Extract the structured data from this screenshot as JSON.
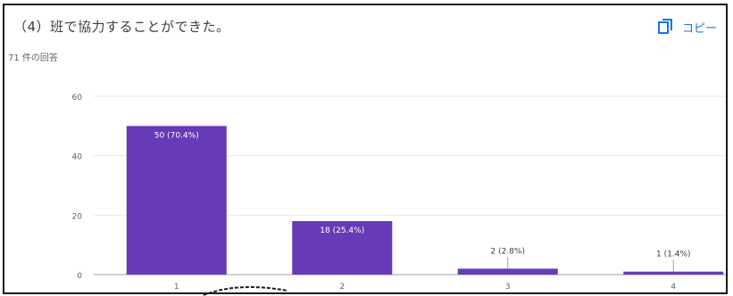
{
  "header": {
    "title": "（4）班で協力することができた。",
    "response_count": "71 件の回答",
    "copy_label": "コピー",
    "copy_icon": "copy-icon"
  },
  "colors": {
    "bar": "#673ab7",
    "grid": "#e8eaed",
    "axis": "#9aa0a6",
    "tick_text": "#5f6368",
    "link": "#1a73e8"
  },
  "chart_data": {
    "type": "bar",
    "categories": [
      "1",
      "2",
      "3",
      "4"
    ],
    "values": [
      50,
      18,
      2,
      1
    ],
    "data_labels": [
      "50 (70.4%)",
      "18 (25.4%)",
      "2 (2.8%)",
      "1 (1.4%)"
    ],
    "yticks": [
      "0",
      "20",
      "40",
      "60"
    ],
    "ylim": [
      0,
      60
    ],
    "grid": true,
    "legend": "none"
  }
}
